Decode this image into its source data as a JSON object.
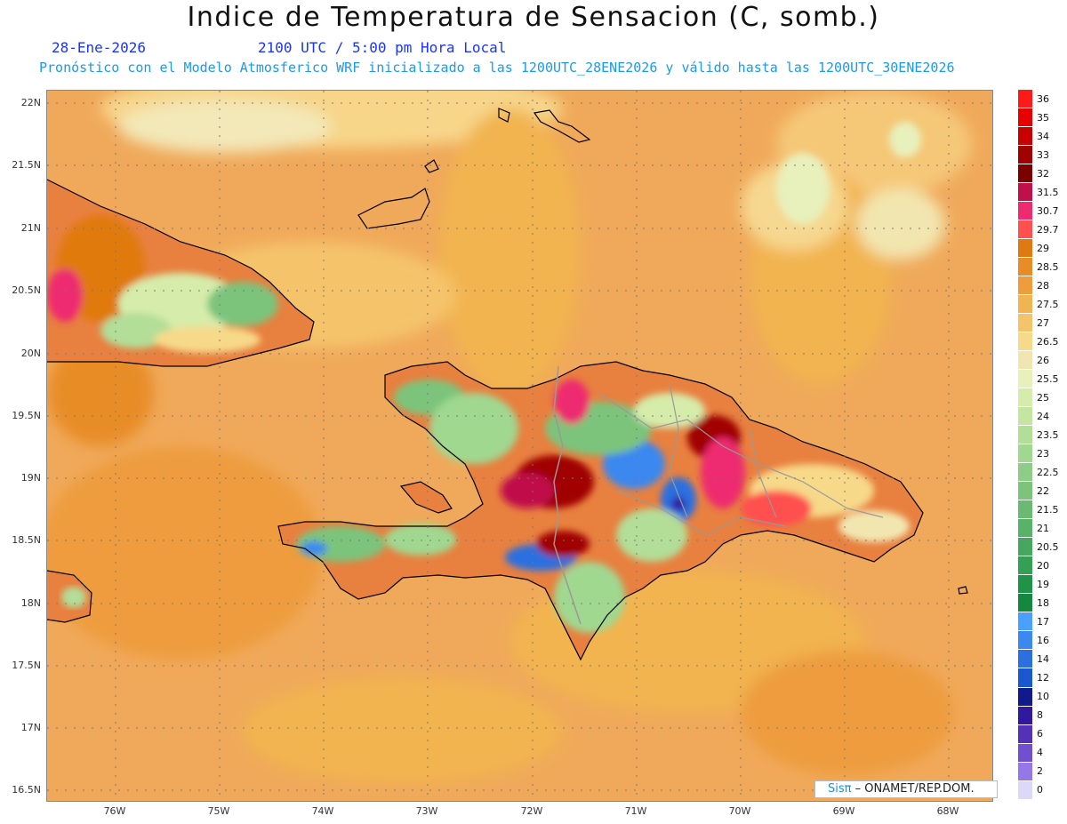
{
  "header": {
    "title": "Indice de Temperatura de Sensacion (C, somb.)",
    "date": "28-Ene-2026",
    "time": "2100 UTC / 5:00 pm Hora Local",
    "model": "Pronóstico con el Modelo Atmosferico WRF inicializado a las 1200UTC_28ENE2026 y válido hasta las  1200UTC_30ENE2026"
  },
  "map": {
    "lon_range": [
      -76.7,
      -67.6
    ],
    "lat_range": [
      16.4,
      22.1
    ],
    "lat_ticks": [
      "22N",
      "21.5N",
      "21N",
      "20.5N",
      "20N",
      "19.5N",
      "19N",
      "18.5N",
      "18N",
      "17.5N",
      "17N",
      "16.5N"
    ],
    "lon_ticks": [
      "76W",
      "75W",
      "74W",
      "73W",
      "72W",
      "71W",
      "70W",
      "69W",
      "68W"
    ],
    "ocean_color": "#f0a95a",
    "land_color": "#e8803f"
  },
  "legend": {
    "labels": [
      "36",
      "35",
      "34",
      "33",
      "32",
      "31.5",
      "30.7",
      "29.7",
      "29",
      "28.5",
      "28",
      "27.5",
      "27",
      "26.5",
      "26",
      "25.5",
      "25",
      "24",
      "23.5",
      "23",
      "22.5",
      "22",
      "21.5",
      "21",
      "20.5",
      "20",
      "19",
      "18",
      "17",
      "16",
      "14",
      "12",
      "10",
      "8",
      "6",
      "4",
      "2",
      "0"
    ],
    "colors": [
      "#ff1a1a",
      "#e60000",
      "#c80000",
      "#a00000",
      "#7a0000",
      "#c0104a",
      "#ee2a70",
      "#ff5050",
      "#e07a10",
      "#e88c28",
      "#ee9c3c",
      "#f2b450",
      "#f5c46a",
      "#f7d98a",
      "#f2e6b0",
      "#e8f0bc",
      "#d6ecaa",
      "#c4e6a0",
      "#b2de98",
      "#a0d890",
      "#8ecd88",
      "#7cc47c",
      "#6aba72",
      "#58b268",
      "#46a85e",
      "#34a054",
      "#1f9448",
      "#14883e",
      "#4aa0ff",
      "#3a88f0",
      "#2a70e0",
      "#1a58d0",
      "#101a8c",
      "#3018a0",
      "#5432b8",
      "#7050d0",
      "#9478e8",
      "#dcd8f8"
    ]
  },
  "credit": {
    "sis": "Sisπ",
    "org": "– ONAMET/REP.DOM."
  }
}
